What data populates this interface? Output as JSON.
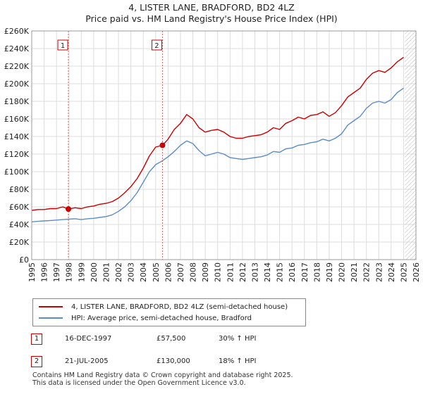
{
  "title": "4, LISTER LANE, BRADFORD, BD2 4LZ",
  "subtitle": "Price paid vs. HM Land Registry's House Price Index (HPI)",
  "legend": {
    "property": "4, LISTER LANE, BRADFORD, BD2 4LZ (semi-detached house)",
    "hpi": "HPI: Average price, semi-detached house, Bradford"
  },
  "sales": [
    {
      "num": "1",
      "date": "16-DEC-1997",
      "price": "£57,500",
      "change": "30% ↑ HPI"
    },
    {
      "num": "2",
      "date": "21-JUL-2005",
      "price": "£130,000",
      "change": "18% ↑ HPI"
    }
  ],
  "footer": {
    "line1": "Contains HM Land Registry data © Crown copyright and database right 2025.",
    "line2": "This data is licensed under the Open Government Licence v3.0."
  },
  "colors": {
    "property": "#cc0000",
    "hpi": "#5b8ec7",
    "grid": "#dddddd"
  },
  "chart_data": {
    "type": "line",
    "title": "4, LISTER LANE, BRADFORD, BD2 4LZ",
    "subtitle": "Price paid vs. HM Land Registry's House Price Index (HPI)",
    "xlim": [
      1995,
      2026
    ],
    "ylim": [
      0,
      260000
    ],
    "y_ticks": [
      0,
      20000,
      40000,
      60000,
      80000,
      100000,
      120000,
      140000,
      160000,
      180000,
      200000,
      220000,
      240000,
      260000
    ],
    "y_tick_labels": [
      "£0",
      "£20K",
      "£40K",
      "£60K",
      "£80K",
      "£100K",
      "£120K",
      "£140K",
      "£160K",
      "£180K",
      "£200K",
      "£220K",
      "£240K",
      "£260K"
    ],
    "x_ticks": [
      1995,
      1996,
      1997,
      1998,
      1999,
      2000,
      2001,
      2002,
      2003,
      2004,
      2005,
      2006,
      2007,
      2008,
      2009,
      2010,
      2011,
      2012,
      2013,
      2014,
      2015,
      2016,
      2017,
      2018,
      2019,
      2020,
      2021,
      2022,
      2023,
      2024,
      2025,
      2026
    ],
    "x_tick_labels": [
      "1995",
      "1996",
      "1997",
      "1998",
      "1999",
      "2000",
      "2001",
      "2002",
      "2003",
      "2004",
      "2005",
      "2006",
      "2007",
      "2008",
      "2009",
      "2010",
      "2011",
      "2012",
      "2013",
      "2014",
      "2015",
      "2016",
      "2017",
      "2018",
      "2019",
      "2020",
      "2021",
      "2022",
      "2023",
      "2024",
      "2025",
      "2026"
    ],
    "hatch_from": 2025.1,
    "series": [
      {
        "name": "4, LISTER LANE, BRADFORD, BD2 4LZ (semi-detached house)",
        "x": [
          1995.0,
          1995.5,
          1996.0,
          1996.5,
          1997.0,
          1997.5,
          1997.96,
          1998.5,
          1999.0,
          1999.5,
          2000.0,
          2000.5,
          2001.0,
          2001.5,
          2002.0,
          2002.5,
          2003.0,
          2003.5,
          2004.0,
          2004.5,
          2005.0,
          2005.55,
          2006.0,
          2006.5,
          2007.0,
          2007.5,
          2008.0,
          2008.5,
          2009.0,
          2009.5,
          2010.0,
          2010.5,
          2011.0,
          2011.5,
          2012.0,
          2012.5,
          2013.0,
          2013.5,
          2014.0,
          2014.5,
          2015.0,
          2015.5,
          2016.0,
          2016.5,
          2017.0,
          2017.5,
          2018.0,
          2018.5,
          2019.0,
          2019.5,
          2020.0,
          2020.5,
          2021.0,
          2021.5,
          2022.0,
          2022.5,
          2023.0,
          2023.5,
          2024.0,
          2024.5,
          2025.0
        ],
        "values": [
          56000,
          57000,
          57000,
          58000,
          58000,
          60000,
          57500,
          59000,
          58000,
          60000,
          61000,
          63000,
          64000,
          66000,
          70000,
          76000,
          83000,
          92000,
          104000,
          118000,
          128000,
          130000,
          137000,
          148000,
          155000,
          165000,
          160000,
          150000,
          145000,
          147000,
          148000,
          145000,
          140000,
          138000,
          138000,
          140000,
          141000,
          142000,
          145000,
          150000,
          148000,
          155000,
          158000,
          162000,
          160000,
          164000,
          165000,
          168000,
          163000,
          167000,
          175000,
          185000,
          190000,
          195000,
          205000,
          212000,
          215000,
          213000,
          218000,
          225000,
          230000
        ]
      },
      {
        "name": "HPI: Average price, semi-detached house, Bradford",
        "x": [
          1995.0,
          1995.5,
          1996.0,
          1996.5,
          1997.0,
          1997.5,
          1998.0,
          1998.5,
          1999.0,
          1999.5,
          2000.0,
          2000.5,
          2001.0,
          2001.5,
          2002.0,
          2002.5,
          2003.0,
          2003.5,
          2004.0,
          2004.5,
          2005.0,
          2005.5,
          2006.0,
          2006.5,
          2007.0,
          2007.5,
          2008.0,
          2008.5,
          2009.0,
          2009.5,
          2010.0,
          2010.5,
          2011.0,
          2011.5,
          2012.0,
          2012.5,
          2013.0,
          2013.5,
          2014.0,
          2014.5,
          2015.0,
          2015.5,
          2016.0,
          2016.5,
          2017.0,
          2017.5,
          2018.0,
          2018.5,
          2019.0,
          2019.5,
          2020.0,
          2020.5,
          2021.0,
          2021.5,
          2022.0,
          2022.5,
          2023.0,
          2023.5,
          2024.0,
          2024.5,
          2025.0
        ],
        "values": [
          43000,
          43500,
          44000,
          44500,
          45000,
          45500,
          46000,
          46500,
          45500,
          46500,
          47000,
          48000,
          49000,
          51000,
          55000,
          60000,
          67000,
          76000,
          88000,
          100000,
          108000,
          112000,
          117000,
          123000,
          130000,
          135000,
          132000,
          124000,
          118000,
          120000,
          122000,
          120000,
          116000,
          115000,
          114000,
          115000,
          116000,
          117000,
          119000,
          123000,
          122000,
          126000,
          127000,
          130000,
          131000,
          133000,
          134000,
          137000,
          135000,
          138000,
          143000,
          153000,
          158000,
          163000,
          172000,
          178000,
          180000,
          178000,
          182000,
          190000,
          195000
        ]
      }
    ],
    "annotations": [
      {
        "label": "1",
        "x": 1997.96,
        "y": 57500
      },
      {
        "label": "2",
        "x": 2005.55,
        "y": 130000
      }
    ]
  }
}
